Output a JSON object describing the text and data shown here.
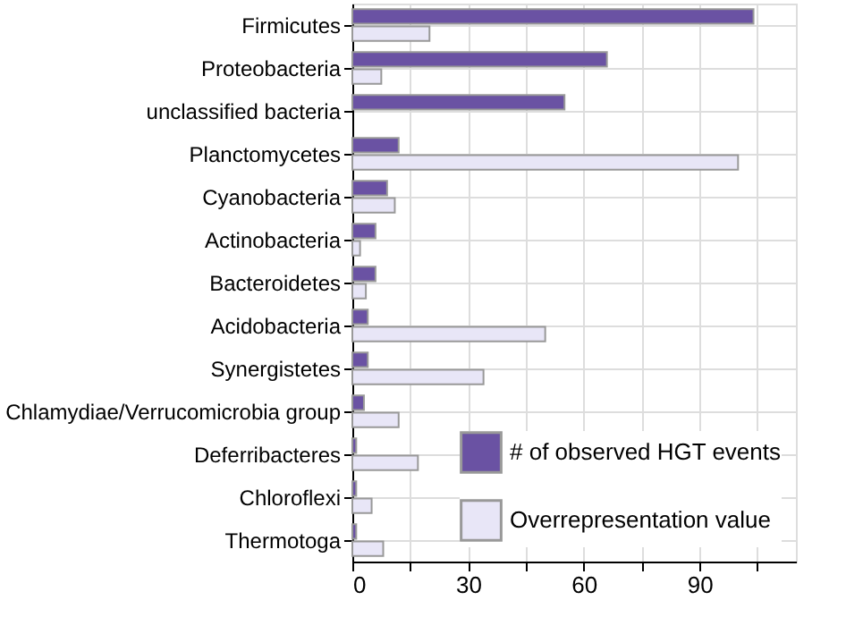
{
  "chart_data": {
    "type": "bar",
    "orientation": "horizontal",
    "categories": [
      "Firmicutes",
      "Proteobacteria",
      "unclassified bacteria",
      "Planctomycetes",
      "Cyanobacteria",
      "Actinobacteria",
      "Bacteroidetes",
      "Acidobacteria",
      "Synergistetes",
      "Chlamydiae/Verrucomicrobia group",
      "Deferribacteres",
      "Chloroflexi",
      "Thermotoga"
    ],
    "series": [
      {
        "name": "# of observed HGT events",
        "color": "#6a52a3",
        "values": [
          104,
          66,
          55,
          12,
          9,
          6,
          6,
          4,
          4,
          3,
          1,
          1,
          1
        ]
      },
      {
        "name": "Overrepresentation value",
        "color": "#e8e6f7",
        "values": [
          20,
          7.5,
          null,
          100,
          11,
          2,
          3.5,
          50,
          34,
          12,
          17,
          5,
          8
        ]
      }
    ],
    "xlim": [
      0,
      115
    ],
    "xticks": [
      0,
      {
        "value": 15,
        "label": null
      },
      30,
      {
        "value": 45,
        "label": null
      },
      60,
      {
        "value": 75,
        "label": null
      },
      90,
      {
        "value": 105,
        "label": null
      }
    ],
    "grid": true,
    "legend": "bottom right"
  }
}
